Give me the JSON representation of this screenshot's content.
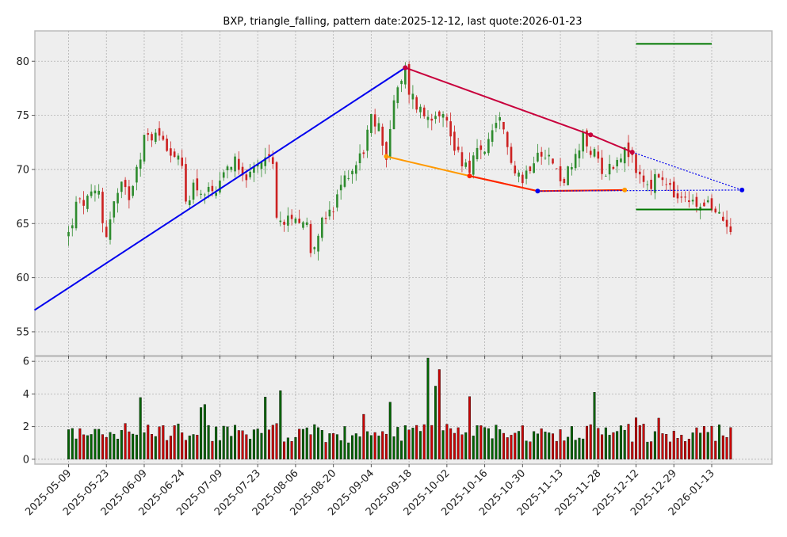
{
  "chart_data": {
    "type": "candlestick",
    "title": "BXP, triangle_falling, pattern date:2025-12-12, last quote:2026-01-23",
    "price_axis": {
      "ylim": [
        52.8,
        82.8
      ],
      "ticks": [
        55,
        60,
        65,
        70,
        75,
        80
      ]
    },
    "volume_axis": {
      "ylim": [
        -0.3,
        6.3
      ],
      "ticks": [
        0,
        2,
        4,
        6
      ]
    },
    "x_tick_labels": [
      "2025-05-09",
      "2025-05-23",
      "2025-06-09",
      "2025-06-24",
      "2025-07-09",
      "2025-07-23",
      "2025-08-06",
      "2025-08-20",
      "2025-09-04",
      "2025-09-18",
      "2025-10-02",
      "2025-10-16",
      "2025-10-30",
      "2025-11-13",
      "2025-11-28",
      "2025-12-12",
      "2025-12-29",
      "2026-01-13"
    ],
    "x_tick_index": [
      0,
      10,
      20,
      30,
      40,
      50,
      60,
      70,
      80,
      90,
      100,
      110,
      120,
      130,
      140,
      150,
      160,
      170
    ],
    "ohlc_waypoints": [
      [
        0,
        64.0
      ],
      [
        2,
        66.6
      ],
      [
        6,
        67.3
      ],
      [
        8,
        67.9
      ],
      [
        9,
        65.2
      ],
      [
        10,
        64.1
      ],
      [
        12,
        66.9
      ],
      [
        14,
        68.3
      ],
      [
        16,
        67.6
      ],
      [
        18,
        70.5
      ],
      [
        20,
        72.7
      ],
      [
        22,
        73.2
      ],
      [
        25,
        73.0
      ],
      [
        27,
        71.8
      ],
      [
        30,
        70.0
      ],
      [
        31,
        67.0
      ],
      [
        33,
        68.6
      ],
      [
        36,
        67.8
      ],
      [
        39,
        67.5
      ],
      [
        42,
        70.0
      ],
      [
        44,
        71.2
      ],
      [
        46,
        70.0
      ],
      [
        48,
        69.1
      ],
      [
        50,
        70.2
      ],
      [
        52,
        71.8
      ],
      [
        54,
        70.1
      ],
      [
        55,
        66.2
      ],
      [
        57,
        64.5
      ],
      [
        59,
        66.0
      ],
      [
        61,
        65.6
      ],
      [
        63,
        64.9
      ],
      [
        64,
        62.6
      ],
      [
        66,
        64.3
      ],
      [
        68,
        65.5
      ],
      [
        70,
        66.0
      ],
      [
        72,
        68.5
      ],
      [
        74,
        69.8
      ],
      [
        76,
        70.5
      ],
      [
        78,
        72.0
      ],
      [
        80,
        74.5
      ],
      [
        82,
        73.8
      ],
      [
        83,
        72.8
      ],
      [
        84,
        71.0
      ],
      [
        85,
        74.0
      ],
      [
        86,
        76.2
      ],
      [
        88,
        78.0
      ],
      [
        89,
        79.0
      ],
      [
        90,
        77.3
      ],
      [
        92,
        76.0
      ],
      [
        94,
        75.0
      ],
      [
        96,
        75.2
      ],
      [
        98,
        75.6
      ],
      [
        100,
        74.2
      ],
      [
        102,
        72.2
      ],
      [
        104,
        70.9
      ],
      [
        106,
        70.3
      ],
      [
        108,
        71.5
      ],
      [
        110,
        72.0
      ],
      [
        112,
        73.0
      ],
      [
        114,
        74.3
      ],
      [
        116,
        72.0
      ],
      [
        118,
        70.3
      ],
      [
        120,
        69.0
      ],
      [
        122,
        70.5
      ],
      [
        124,
        72.0
      ],
      [
        126,
        71.7
      ],
      [
        128,
        70.5
      ],
      [
        130,
        69.0
      ],
      [
        132,
        69.7
      ],
      [
        134,
        70.8
      ],
      [
        136,
        72.8
      ],
      [
        138,
        71.8
      ],
      [
        140,
        70.8
      ],
      [
        142,
        69.7
      ],
      [
        144,
        70.6
      ],
      [
        146,
        71.6
      ],
      [
        148,
        71.5
      ],
      [
        150,
        70.0
      ],
      [
        152,
        68.9
      ],
      [
        154,
        68.6
      ],
      [
        156,
        69.3
      ],
      [
        158,
        68.4
      ],
      [
        160,
        67.6
      ],
      [
        162,
        66.9
      ],
      [
        164,
        67.2
      ],
      [
        166,
        66.4
      ],
      [
        168,
        67.3
      ],
      [
        170,
        66.1
      ],
      [
        172,
        65.6
      ],
      [
        174,
        65.2
      ],
      [
        175,
        64.8
      ]
    ],
    "overlays": [
      {
        "name": "upper-trend-blue",
        "color": "#0000ee",
        "style": "solid",
        "points": [
          [
            -9,
            57.0
          ],
          [
            89,
            79.4
          ]
        ]
      },
      {
        "name": "resistance-falling",
        "color": "#c8003c",
        "style": "solid",
        "points": [
          [
            89,
            79.4
          ],
          [
            138,
            73.2
          ],
          [
            149,
            71.6
          ]
        ]
      },
      {
        "name": "resistance-extension",
        "color": "#0000ee",
        "style": "dotted",
        "points": [
          [
            149,
            71.6
          ],
          [
            178,
            68.1
          ]
        ]
      },
      {
        "name": "support-orange",
        "color": "#ff9900",
        "style": "solid",
        "points": [
          [
            84,
            71.2
          ],
          [
            106,
            69.4
          ],
          [
            124,
            68.0
          ],
          [
            147,
            68.1
          ]
        ]
      },
      {
        "name": "support-red",
        "color": "#ff2200",
        "style": "solid",
        "points": [
          [
            106,
            69.4
          ],
          [
            124,
            68.0
          ],
          [
            147,
            68.1
          ]
        ]
      },
      {
        "name": "support-extension",
        "color": "#0000ee",
        "style": "dotted",
        "points": [
          [
            124,
            68.0
          ],
          [
            178,
            68.1
          ]
        ]
      },
      {
        "name": "target-upper",
        "color": "#007700",
        "style": "solid",
        "points": [
          [
            150,
            81.6
          ],
          [
            170,
            81.6
          ]
        ]
      },
      {
        "name": "target-lower",
        "color": "#007700",
        "style": "solid",
        "points": [
          [
            150,
            66.3
          ],
          [
            170,
            66.3
          ]
        ]
      }
    ],
    "markers": [
      {
        "color": "#0000ee",
        "points": [
          [
            89,
            79.4
          ],
          [
            124,
            68.0
          ],
          [
            178,
            68.1
          ]
        ]
      },
      {
        "color": "#c8003c",
        "points": [
          [
            89,
            79.4
          ],
          [
            138,
            73.2
          ],
          [
            149,
            71.6
          ]
        ]
      },
      {
        "color": "#ff9900",
        "points": [
          [
            84,
            71.2
          ],
          [
            147,
            68.1
          ]
        ]
      },
      {
        "color": "#ff2200",
        "points": [
          [
            106,
            69.4
          ]
        ]
      }
    ],
    "grid": true,
    "colors": {
      "up": "#2e8b2e",
      "down": "#cc2222",
      "background": "#eeeeee",
      "grid": "#b0b0b0"
    }
  }
}
